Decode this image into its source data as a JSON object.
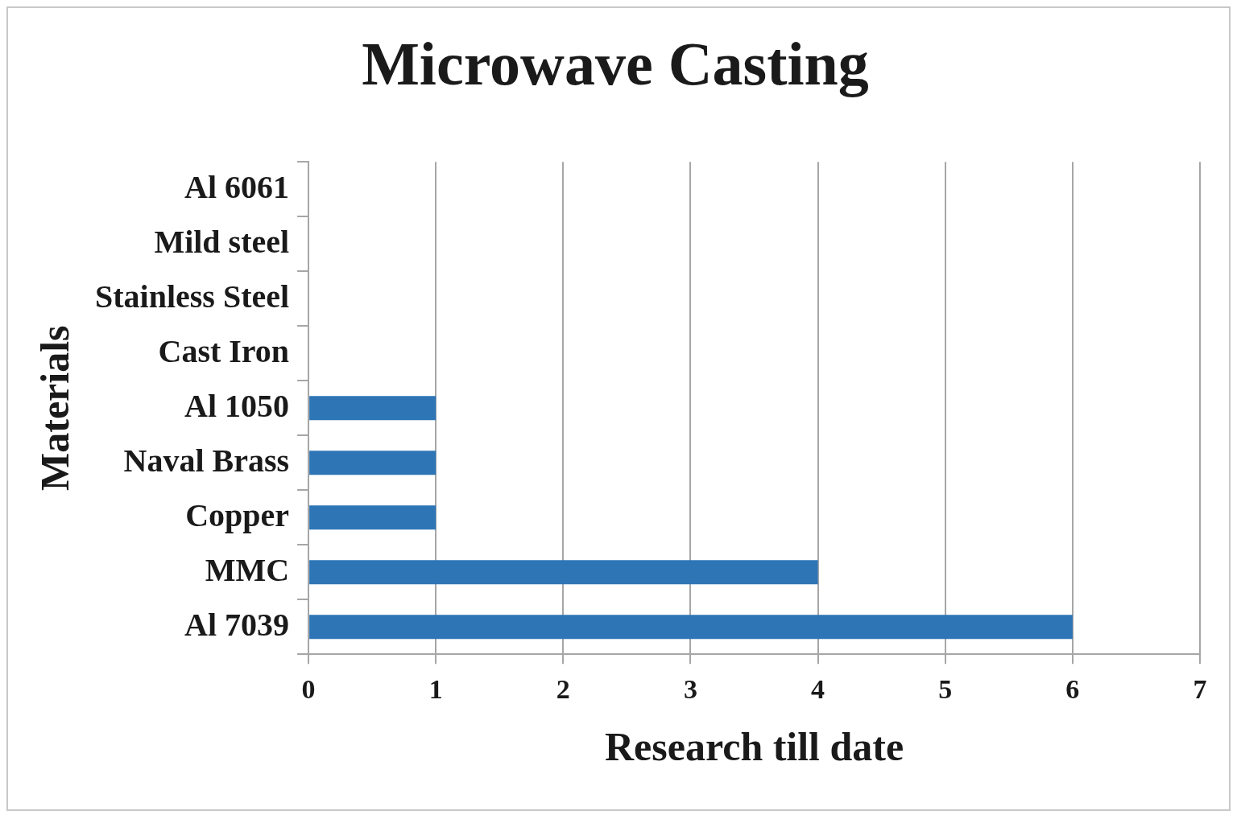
{
  "chart_data": {
    "type": "bar",
    "orientation": "horizontal",
    "title": "Microwave Casting",
    "xlabel": "Research till date",
    "ylabel": "Materials",
    "categories": [
      "Al 6061",
      "Mild steel",
      "Stainless Steel",
      "Cast Iron",
      "Al 1050",
      "Naval Brass",
      "Copper",
      "MMC",
      "Al 7039"
    ],
    "values": [
      0,
      0,
      0,
      0,
      1,
      1,
      1,
      4,
      6
    ],
    "color": "#2e75b6",
    "xlim": [
      0,
      7
    ],
    "xticks": [
      0,
      1,
      2,
      3,
      4,
      5,
      6,
      7
    ],
    "grid": "x",
    "legend": false
  }
}
